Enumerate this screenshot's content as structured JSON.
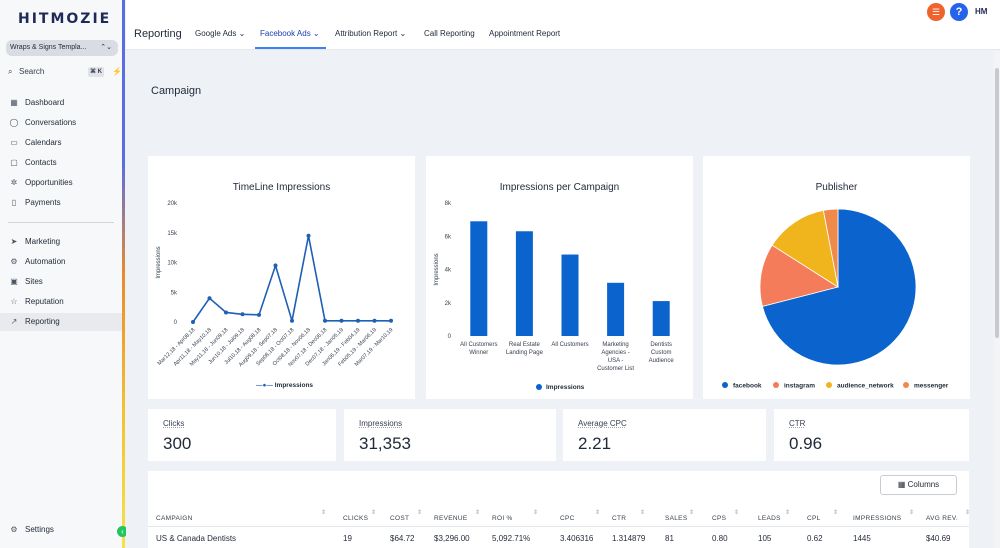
{
  "app": {
    "logo_text": "HITMOZIE",
    "location": "Wraps & Signs Templa...",
    "location_ud": "⌃⌄"
  },
  "search": {
    "label": "Search",
    "shortcut": "⌘ K"
  },
  "sidebar": {
    "items": [
      {
        "label": "Dashboard",
        "icon": "grid-icon",
        "glyph": "▦"
      },
      {
        "label": "Conversations",
        "icon": "chat-icon",
        "glyph": "◯"
      },
      {
        "label": "Calendars",
        "icon": "calendar-icon",
        "glyph": "▭"
      },
      {
        "label": "Contacts",
        "icon": "contacts-icon",
        "glyph": "▢"
      },
      {
        "label": "Opportunities",
        "icon": "opportunities-icon",
        "glyph": "✲"
      },
      {
        "label": "Payments",
        "icon": "payments-icon",
        "glyph": "▯"
      },
      {
        "label": "Marketing",
        "icon": "send-icon",
        "glyph": "➤"
      },
      {
        "label": "Automation",
        "icon": "automation-icon",
        "glyph": "⚙"
      },
      {
        "label": "Sites",
        "icon": "sites-icon",
        "glyph": "▣"
      },
      {
        "label": "Reputation",
        "icon": "star-icon",
        "glyph": "☆"
      },
      {
        "label": "Reporting",
        "icon": "trend-icon",
        "glyph": "↗"
      }
    ],
    "settings": "Settings"
  },
  "header": {
    "title": "Reporting",
    "tabs": [
      "Google Ads ⌄",
      "Facebook Ads ⌄",
      "Attribution Report ⌄",
      "Call Reporting",
      "Appointment Report"
    ],
    "active_tab": 1,
    "avatar": "HM"
  },
  "page": {
    "section_title": "Campaign"
  },
  "charts": {
    "timeline": {
      "title": "TimeLine Impressions",
      "ylabel": "Impressions",
      "legend": "Impressions"
    },
    "per_campaign": {
      "title": "Impressions per Campaign",
      "ylabel": "Impressions",
      "legend": "Impressions"
    },
    "publisher": {
      "title": "Publisher"
    }
  },
  "chart_data": [
    {
      "type": "line",
      "title": "TimeLine Impressions",
      "ylabel": "Impressions",
      "ylim": [
        0,
        20000
      ],
      "yticks": [
        "0",
        "5k",
        "10k",
        "15k",
        "20k"
      ],
      "x": [
        "Mar12,18 - Apr08,18",
        "Apr11,18 - May10,18",
        "May11,18 - Jun09,18",
        "Jun10,18 - Jul09,18",
        "Jul10,18 - Aug08,18",
        "Aug09,18 - Sep07,18",
        "Sep08,18 - Oct07,18",
        "Oct08,18 - Nov06,18",
        "Nov07,18 - Dec06,18",
        "Dec07,18 - Jan05,19",
        "Jan06,19 - Feb04,19",
        "Feb05,19 - Mar06,19",
        "Mar07,19 - Mar10,19"
      ],
      "series": [
        {
          "name": "Impressions",
          "values": [
            0,
            4000,
            1600,
            1300,
            1200,
            9500,
            200,
            14500,
            200,
            200,
            200,
            200,
            200
          ]
        }
      ],
      "color": "#1f5fb5"
    },
    {
      "type": "bar",
      "title": "Impressions per Campaign",
      "ylabel": "Impressions",
      "ylim": [
        0,
        8000
      ],
      "yticks": [
        "0",
        "2k",
        "4k",
        "6k",
        "8k"
      ],
      "categories": [
        [
          "All Customers",
          "Winner"
        ],
        [
          "Real Estate",
          "Landing Page"
        ],
        [
          "All Customers"
        ],
        [
          "Marketing",
          "Agencies -",
          "USA -",
          "Customer List"
        ],
        [
          "Dentists",
          "Custom",
          "Audience"
        ]
      ],
      "series": [
        {
          "name": "Impressions",
          "values": [
            6900,
            6300,
            4900,
            3200,
            2100
          ]
        }
      ],
      "color": "#0b63ce"
    },
    {
      "type": "pie",
      "title": "Publisher",
      "slices": [
        {
          "label": "facebook",
          "value": 71,
          "color": "#0b63ce"
        },
        {
          "label": "instagram",
          "value": 13,
          "color": "#f47c5a"
        },
        {
          "label": "audience_network",
          "value": 13,
          "color": "#f0b41c"
        },
        {
          "label": "messenger",
          "value": 3,
          "color": "#f08a4b"
        }
      ]
    }
  ],
  "stats": [
    {
      "label": "Clicks",
      "value": "300"
    },
    {
      "label": "Impressions",
      "value": "31,353"
    },
    {
      "label": "Average CPC",
      "value": "2.21"
    },
    {
      "label": "CTR",
      "value": "0.96"
    }
  ],
  "table": {
    "columns_button": "Columns",
    "headers": [
      "CAMPAIGN",
      "CLICKS",
      "COST",
      "REVENUE",
      "ROI %",
      "CPC",
      "CTR",
      "SALES",
      "CPS",
      "LEADS",
      "CPL",
      "IMPRESSIONS",
      "AVG REV."
    ],
    "rows": [
      [
        "US & Canada Dentists",
        "19",
        "$64.72",
        "$3,296.00",
        "5,092.71%",
        "3.406316",
        "1.314879",
        "81",
        "0.80",
        "105",
        "0.62",
        "1445",
        "$40.69"
      ]
    ]
  }
}
